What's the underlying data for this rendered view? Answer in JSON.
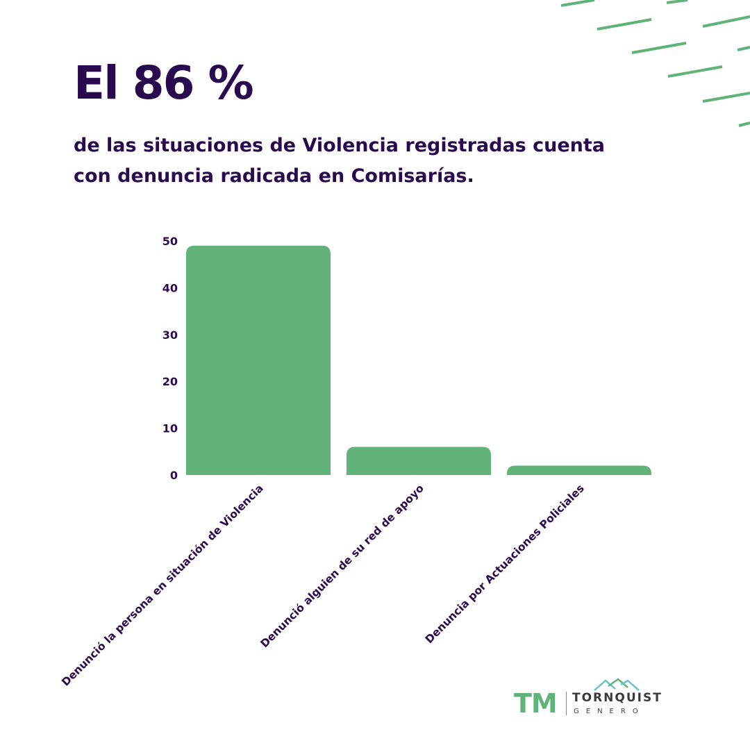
{
  "headline": "El 86 %",
  "subtitle": "de las situaciones de Violencia registradas cuenta con denuncia radicada en Comisarías.",
  "logo": {
    "initials": "TM",
    "name": "TORNQUIST",
    "sub": "GENERO"
  },
  "colors": {
    "text": "#2a0a4e",
    "bar": "#62b37a",
    "accent": "#5fb27a",
    "mountain_teal": "#6cc3c6",
    "mountain_green": "#5fb27a"
  },
  "chart_data": {
    "type": "bar",
    "categories": [
      "Denunció la persona en situación de Violencia",
      "Denunció alguien de su red de apoyo",
      "Denuncia por Actuaciones Policiales"
    ],
    "values": [
      49,
      6,
      2
    ],
    "ylim": [
      0,
      50
    ],
    "yticks": [
      0,
      10,
      20,
      30,
      40,
      50
    ],
    "grid": false,
    "legend": "none",
    "title": "",
    "xlabel": "",
    "ylabel": ""
  }
}
